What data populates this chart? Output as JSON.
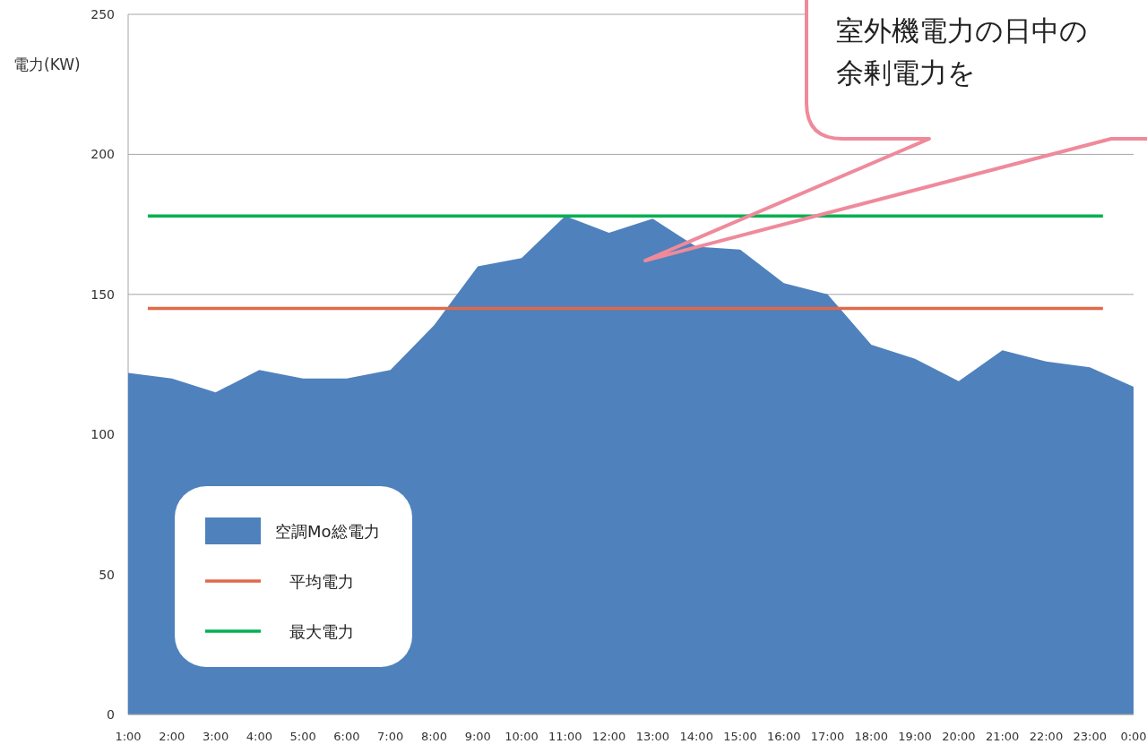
{
  "chart_data": {
    "type": "area",
    "ylabel": "電力(KW)",
    "categories": [
      "1:00",
      "2:00",
      "3:00",
      "4:00",
      "5:00",
      "6:00",
      "7:00",
      "8:00",
      "9:00",
      "10:00",
      "11:00",
      "12:00",
      "13:00",
      "14:00",
      "15:00",
      "16:00",
      "17:00",
      "18:00",
      "19:00",
      "20:00",
      "21:00",
      "22:00",
      "23:00",
      "0:00"
    ],
    "series": [
      {
        "name": "空調Mo総電力",
        "color": "#4f81bd",
        "values": [
          122,
          120,
          115,
          123,
          120,
          120,
          123,
          139,
          160,
          163,
          178,
          172,
          177,
          167,
          166,
          154,
          150,
          132,
          127,
          119,
          130,
          126,
          124,
          117
        ]
      }
    ],
    "ref_lines": [
      {
        "axis": "y",
        "value": 145,
        "label": "平均電力",
        "color": "#e0694a"
      },
      {
        "axis": "y",
        "value": 178,
        "label": "最大電力",
        "color": "#00b050"
      }
    ],
    "annotations": [
      "室外機電力の日中の",
      "余剰電力を"
    ],
    "ylim": [
      0,
      250
    ],
    "yticks": [
      0,
      50,
      100,
      150,
      200,
      250
    ],
    "grid": "y",
    "legend": "bottom left"
  }
}
